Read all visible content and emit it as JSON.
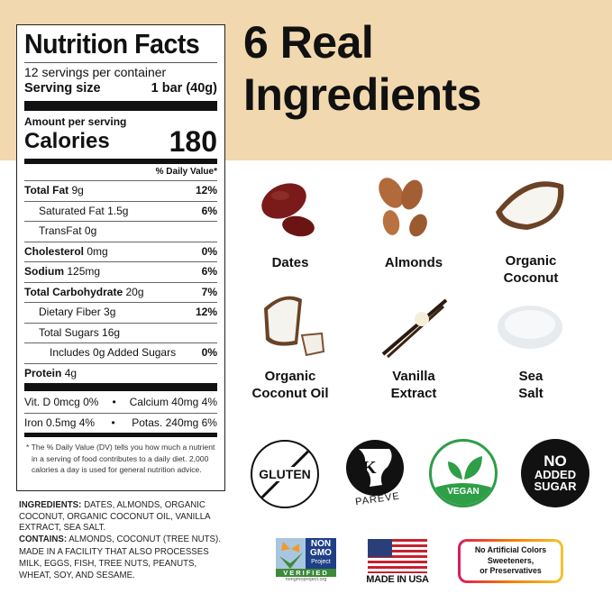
{
  "nutrition": {
    "title": "Nutrition Facts",
    "servings": "12 servings per container",
    "serving_size_label": "Serving size",
    "serving_size_value": "1 bar (40g)",
    "amount_per_serving": "Amount per serving",
    "calories_label": "Calories",
    "calories_value": "180",
    "dv_header": "% Daily Value*",
    "rows": [
      {
        "label": "Total Fat",
        "amount": "9g",
        "dv": "12%"
      },
      {
        "label": "Saturated Fat",
        "amount": "1.5g",
        "dv": "6%"
      },
      {
        "label": "TransFat",
        "amount": "0g",
        "dv": ""
      },
      {
        "label": "Cholesterol",
        "amount": "0mg",
        "dv": "0%"
      },
      {
        "label": "Sodium",
        "amount": "125mg",
        "dv": "6%"
      },
      {
        "label": "Total Carbohydrate",
        "amount": "20g",
        "dv": "7%"
      },
      {
        "label": "Dietary Fiber",
        "amount": "3g",
        "dv": "12%"
      },
      {
        "label": "Total Sugars",
        "amount": "16g",
        "dv": ""
      },
      {
        "label": "Includes 0g Added Sugars",
        "amount": "",
        "dv": "0%"
      },
      {
        "label": "Protein",
        "amount": "4g",
        "dv": ""
      }
    ],
    "vit_d": "Vit. D 0mcg 0%",
    "calcium": "Calcium 40mg 4%",
    "iron": "Iron 0.5mg 4%",
    "potassium": "Potas. 240mg 6%",
    "bullet": "•",
    "footnote": "* The % Daily Value (DV) tells you how much a nutrient in a serving of food contributes to a daily diet. 2,000 calories a day is used for general nutrition advice."
  },
  "ingredients_text": {
    "ingredients_label": "INGREDIENTS:",
    "ingredients": "DATES, ALMONDS, ORGANIC COCONUT, ORGANIC COCONUT OIL, VANILLA EXTRACT, SEA SALT.",
    "contains_label": "CONTAINS:",
    "contains": "ALMONDS, COCONUT (TREE NUTS).",
    "facility": "MADE IN A FACILITY THAT ALSO PROCESSES MILK, EGGS, FISH, TREE NUTS, PEANUTS, WHEAT, SOY, AND SESAME."
  },
  "headline": {
    "line1": "6 Real",
    "line2": "Ingredients"
  },
  "ingredients": [
    {
      "name1": "Dates",
      "name2": ""
    },
    {
      "name1": "Almonds",
      "name2": ""
    },
    {
      "name1": "Organic",
      "name2": "Coconut"
    },
    {
      "name1": "Organic",
      "name2": "Coconut Oil"
    },
    {
      "name1": "Vanilla",
      "name2": "Extract"
    },
    {
      "name1": "Sea",
      "name2": "Salt"
    }
  ],
  "badges": {
    "gluten": "GLUTEN",
    "pareve_k": "K",
    "pareve": "PAREVE",
    "vegan": "VEGAN",
    "no_added_sugar": [
      "NO",
      "ADDED",
      "SUGAR"
    ],
    "nongmo": {
      "l1": "NON",
      "l2": "GMO",
      "l3": "Project",
      "verified": "VERIFIED",
      "url": "nongmoproject.org"
    },
    "usa": "MADE IN USA",
    "no_artificial": [
      "No Artificial Colors",
      "Sweeteners,",
      "or Preservatives"
    ]
  },
  "colors": {
    "beige": "#f2d8ae",
    "vegan_green": "#2e9e47",
    "nongmo_green": "#3d8a3a",
    "nongmo_blue": "#1f3f86"
  }
}
